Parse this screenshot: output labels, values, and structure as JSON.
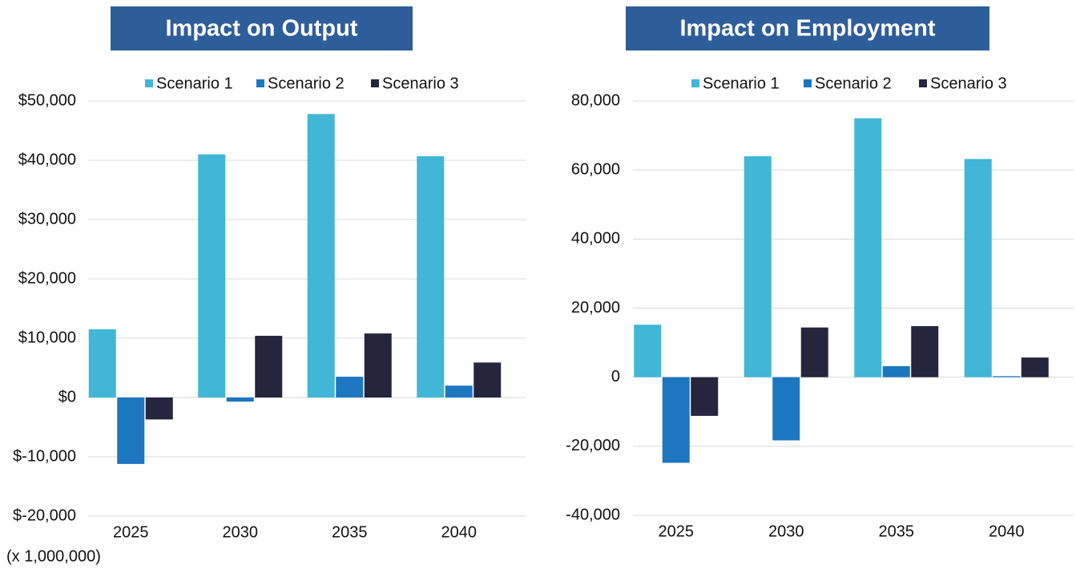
{
  "chart_data": [
    {
      "type": "bar",
      "title": "Impact on Output",
      "annotation": "(x 1,000,000)",
      "categories": [
        "2025",
        "2030",
        "2035",
        "2040"
      ],
      "series": [
        {
          "name": "Scenario 1",
          "color": "#41b6d6",
          "values": [
            11500,
            41000,
            47800,
            40700
          ]
        },
        {
          "name": "Scenario 2",
          "color": "#1d76c0",
          "values": [
            -11200,
            -700,
            3500,
            2000
          ]
        },
        {
          "name": "Scenario 3",
          "color": "#25263d",
          "values": [
            -3700,
            10400,
            10800,
            5900
          ]
        }
      ],
      "ylim": [
        -20000,
        50000
      ],
      "yticks": [
        {
          "value": -20000,
          "label": "$-20,000"
        },
        {
          "value": -10000,
          "label": "$-10,000"
        },
        {
          "value": 0,
          "label": "$0"
        },
        {
          "value": 10000,
          "label": "$10,000"
        },
        {
          "value": 20000,
          "label": "$20,000"
        },
        {
          "value": 30000,
          "label": "$30,000"
        },
        {
          "value": 40000,
          "label": "$40,000"
        },
        {
          "value": 50000,
          "label": "$50,000"
        }
      ],
      "grid": true,
      "legend": "top"
    },
    {
      "type": "bar",
      "title": "Impact on Employment",
      "categories": [
        "2025",
        "2030",
        "2035",
        "2040"
      ],
      "series": [
        {
          "name": "Scenario 1",
          "color": "#41b6d6",
          "values": [
            15200,
            64000,
            75000,
            63200
          ]
        },
        {
          "name": "Scenario 2",
          "color": "#1d76c0",
          "values": [
            -24800,
            -18300,
            3200,
            300
          ]
        },
        {
          "name": "Scenario 3",
          "color": "#25263d",
          "values": [
            -11200,
            14400,
            14800,
            5700
          ]
        }
      ],
      "ylim": [
        -40000,
        80000
      ],
      "yticks": [
        {
          "value": -40000,
          "label": "-40,000"
        },
        {
          "value": -20000,
          "label": "-20,000"
        },
        0,
        {
          "value": 20000,
          "label": "20,000"
        },
        {
          "value": 40000,
          "label": "40,000"
        },
        {
          "value": 60000,
          "label": "60,000"
        },
        {
          "value": 80000,
          "label": "80,000"
        }
      ],
      "grid": true,
      "legend": "top"
    }
  ]
}
